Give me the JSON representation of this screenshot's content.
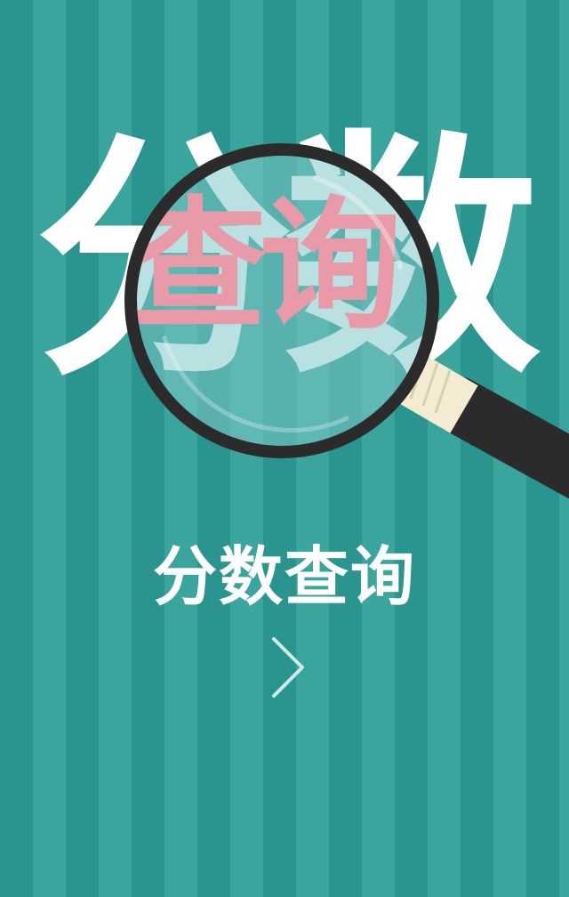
{
  "hero": {
    "bg_char_1": "分",
    "bg_char_2": "数",
    "lens_text": "查询",
    "colors": {
      "bg_text": "#ffffff",
      "lens_text": "#e89aa8",
      "lens_fill": "#7fc9c8",
      "frame": "#2b2b2b",
      "handle_collar": "#f4ecd2"
    }
  },
  "title": "分数查询",
  "next_icon": "chevron-right-icon",
  "colors": {
    "stripe_dark": "#2a958f",
    "stripe_light": "#3aa59d",
    "title": "#ffffff"
  }
}
